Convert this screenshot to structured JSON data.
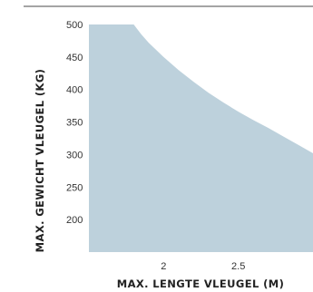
{
  "chart_data": {
    "type": "area",
    "title": "",
    "xlabel": "MAX. LENGTE VLEUGEL (M)",
    "ylabel": "MAX. GEWICHT VLEUGEL (KG)",
    "xlim": [
      1.5,
      3.0
    ],
    "ylim": [
      150,
      500
    ],
    "x_ticks": [
      "2",
      "2.5"
    ],
    "y_ticks": [
      "500",
      "450",
      "400",
      "350",
      "300",
      "250",
      "200"
    ],
    "grid": false,
    "legend": "none",
    "series": [
      {
        "color": "#bdd1dc",
        "x": [
          1.5,
          1.8,
          1.85,
          1.9,
          2.0,
          2.1,
          2.2,
          2.3,
          2.4,
          2.5,
          2.6,
          2.7,
          2.8,
          2.9,
          3.0
        ],
        "y": [
          500,
          500,
          485,
          472,
          450,
          430,
          412,
          395,
          380,
          366,
          353,
          341,
          328,
          315,
          302
        ]
      }
    ]
  }
}
